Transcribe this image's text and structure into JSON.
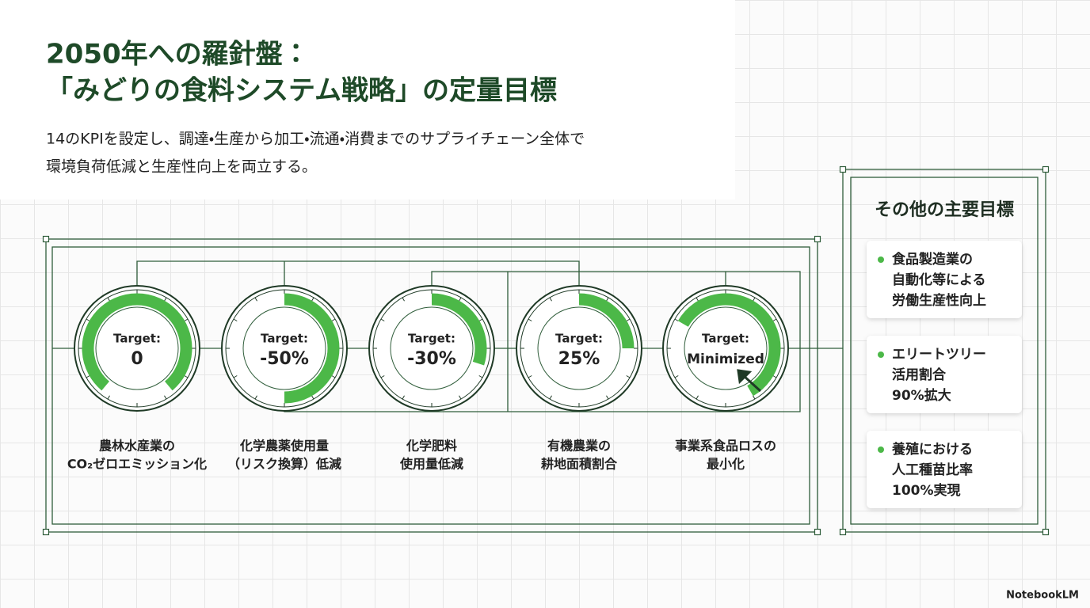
{
  "header": {
    "title": [
      "2050年への羅針盤：",
      "「みどりの食料システム戦略」の定量目標"
    ],
    "subtitle": [
      "14のKPIを設定し、調達・生産から加工・流通・消費までのサプライチェーン全体で",
      "環境負荷低減と生産性向上を両立する。"
    ]
  },
  "gauges": [
    {
      "label": "Target:",
      "value": "0",
      "caption": [
        "農林水産業の",
        "CO₂ゼロエミッション化"
      ]
    },
    {
      "label": "Target:",
      "value": "-50%",
      "caption": [
        "化学農薬使用量",
        "（リスク換算）低減"
      ]
    },
    {
      "label": "Target:",
      "value": "-30%",
      "caption": [
        "化学肥料",
        "使用量低減"
      ]
    },
    {
      "label": "Target:",
      "value": "25%",
      "caption": [
        "有機農業の",
        "耕地面積割合"
      ]
    },
    {
      "label": "Target:",
      "value": "Minimized",
      "caption": [
        "事業系食品ロスの",
        "最小化"
      ]
    }
  ],
  "side_panel": {
    "title": "その他の主要目標",
    "items": [
      [
        "食品製造業の",
        "自動化等による",
        "労働生産性向上"
      ],
      [
        "エリートツリー",
        "活用割合",
        "90%拡大"
      ],
      [
        "養殖における",
        "人工種苗比率",
        "100%実現"
      ]
    ]
  },
  "footer": {
    "brand": "NotebookLM"
  }
}
